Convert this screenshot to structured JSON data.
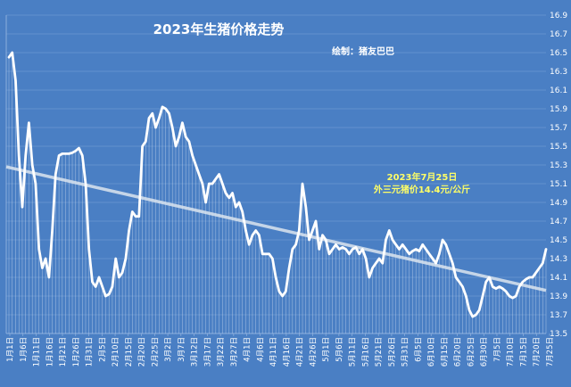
{
  "chart_data": {
    "type": "line",
    "title": "2023年生猪价格走势",
    "subtitle": "绘制：猪友巴巴",
    "annotation": {
      "line1": "2023年7月25日",
      "line2": "外三元猪价14.4元/公斤"
    },
    "xlabel": "",
    "ylabel": "",
    "ylim": [
      13.5,
      16.9
    ],
    "y_ticks": [
      "13.5",
      "13.7",
      "13.9",
      "14.1",
      "14.3",
      "14.5",
      "14.7",
      "14.9",
      "15.1",
      "15.3",
      "15.5",
      "15.7",
      "15.9",
      "16.1",
      "16.3",
      "16.5",
      "16.7",
      "16.9"
    ],
    "x_ticks": [
      "1月1日",
      "1月6日",
      "1月11日",
      "1月16日",
      "1月21日",
      "1月26日",
      "1月31日",
      "2月5日",
      "2月10日",
      "2月15日",
      "2月20日",
      "2月25日",
      "3月2日",
      "3月7日",
      "3月12日",
      "3月17日",
      "3月22日",
      "3月27日",
      "4月1日",
      "4月6日",
      "4月11日",
      "4月16日",
      "4月21日",
      "4月26日",
      "5月1日",
      "5月6日",
      "5月11日",
      "5月16日",
      "5月21日",
      "5月26日",
      "5月31日",
      "6月5日",
      "6月10日",
      "6月15日",
      "6月20日",
      "6月25日",
      "6月30日",
      "7月5日",
      "7月10日",
      "7月15日",
      "7月20日",
      "7月25日"
    ],
    "grid": true,
    "legend": "none",
    "series": [
      {
        "style": "line-with-drop-lines",
        "color": "#ffffff",
        "values": [
          16.45,
          16.5,
          16.2,
          15.4,
          14.85,
          15.4,
          15.75,
          15.3,
          15.1,
          14.4,
          14.2,
          14.3,
          14.1,
          14.6,
          15.2,
          15.4,
          15.42,
          15.42,
          15.42,
          15.43,
          15.45,
          15.48,
          15.4,
          15.1,
          14.4,
          14.05,
          14.0,
          14.1,
          14.0,
          13.9,
          13.92,
          14.0,
          14.3,
          14.1,
          14.15,
          14.3,
          14.6,
          14.8,
          14.75,
          14.75,
          15.5,
          15.55,
          15.8,
          15.85,
          15.7,
          15.8,
          15.92,
          15.9,
          15.85,
          15.7,
          15.5,
          15.6,
          15.75,
          15.6,
          15.55,
          15.4,
          15.3,
          15.2,
          15.1,
          14.9,
          15.1,
          15.1,
          15.15,
          15.2,
          15.1,
          15.0,
          14.95,
          15.0,
          14.85,
          14.9,
          14.8,
          14.6,
          14.45,
          14.55,
          14.6,
          14.55,
          14.35,
          14.35,
          14.35,
          14.3,
          14.1,
          13.95,
          13.9,
          13.95,
          14.2,
          14.4,
          14.45,
          14.6,
          15.1,
          14.85,
          14.5,
          14.6,
          14.7,
          14.4,
          14.55,
          14.5,
          14.35,
          14.4,
          14.45,
          14.4,
          14.42,
          14.4,
          14.35,
          14.4,
          14.42,
          14.35,
          14.4,
          14.3,
          14.1,
          14.2,
          14.25,
          14.3,
          14.25,
          14.5,
          14.6,
          14.5,
          14.45,
          14.4,
          14.45,
          14.4,
          14.35,
          14.38,
          14.4,
          14.38,
          14.45,
          14.4,
          14.35,
          14.3,
          14.25,
          14.35,
          14.5,
          14.45,
          14.35,
          14.25,
          14.1,
          14.05,
          14.0,
          13.9,
          13.75,
          13.68,
          13.7,
          13.75,
          13.9,
          14.05,
          14.1,
          14.0,
          13.98,
          14.0,
          13.98,
          13.95,
          13.9,
          13.88,
          13.9,
          14.0,
          14.05,
          14.08,
          14.1,
          14.1,
          14.15,
          14.2,
          14.25,
          14.4
        ]
      }
    ],
    "trendline": {
      "color": "#dbe4ee",
      "from": 15.28,
      "to": 13.96
    }
  }
}
